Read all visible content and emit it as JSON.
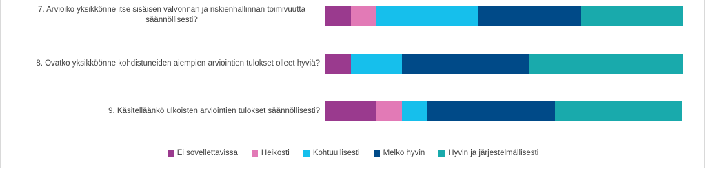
{
  "chart_data": {
    "type": "stacked-bar-horizontal",
    "categories": [
      "7. Arvioiko yksikkönne itse sisäisen valvonnan ja riskienhallinnan toimivuutta säännöllisesti?",
      "8. Ovatko yksikköönne kohdistuneiden aiempien arviointien tulokset olleet hyviä?",
      "9. Käsitelläänkö ulkoisten arviointien tulokset säännöllisesti?"
    ],
    "series": [
      {
        "name": "Ei sovellettavissa",
        "color": "#9a3a8e",
        "values": [
          7.1,
          7.1,
          14.3
        ]
      },
      {
        "name": "Heikosti",
        "color": "#e27ab6",
        "values": [
          7.1,
          0,
          7.1
        ]
      },
      {
        "name": "Kohtuullisesti",
        "color": "#16bfec",
        "values": [
          28.6,
          14.3,
          7.1
        ]
      },
      {
        "name": "Melko hyvin",
        "color": "#004a88",
        "values": [
          28.6,
          35.7,
          35.7
        ]
      },
      {
        "name": "Hyvin ja järjestelmällisesti",
        "color": "#19aaac",
        "values": [
          28.6,
          42.9,
          35.7
        ]
      }
    ],
    "xlim": [
      0,
      100
    ]
  }
}
